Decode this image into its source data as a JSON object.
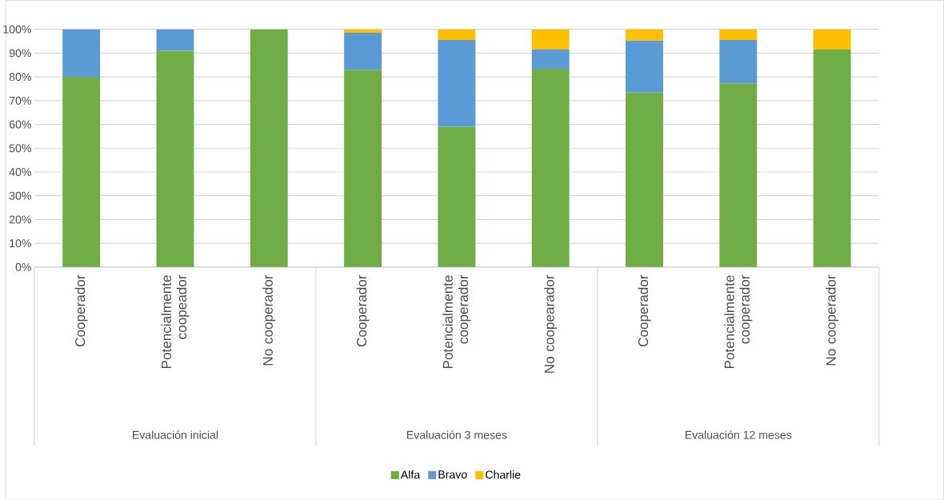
{
  "chart_data": {
    "type": "bar",
    "stacked": true,
    "categories": [
      "Cooperador",
      "Potencialmente coopeador",
      "No cooperador",
      "Cooperador",
      "Potencialmente cooperador",
      "No coopearador",
      "Cooperador",
      "Potencialmente cooperador",
      "No cooperador"
    ],
    "series": [
      {
        "name": "Alfa",
        "color": "#70ad47",
        "values": [
          80,
          91,
          100,
          83,
          59,
          83.4,
          73.4,
          77.3,
          91.6
        ]
      },
      {
        "name": "Bravo",
        "color": "#5b9bd5",
        "values": [
          20,
          9,
          null,
          15.5,
          36.5,
          8.2,
          21.9,
          18.2,
          null
        ]
      },
      {
        "name": "Charlie",
        "color": "#ffc000",
        "values": [
          null,
          null,
          null,
          1.5,
          4.5,
          8.4,
          4.7,
          4.5,
          8.4
        ]
      }
    ],
    "ylim": [
      0,
      100
    ],
    "yticks": [
      {
        "value": 0,
        "label": "0%"
      },
      {
        "value": 10,
        "label": "10%"
      },
      {
        "value": 20,
        "label": "20%"
      },
      {
        "value": 30,
        "label": "30%"
      },
      {
        "value": 40,
        "label": "40%"
      },
      {
        "value": 50,
        "label": "50%"
      },
      {
        "value": 60,
        "label": "60%"
      },
      {
        "value": 70,
        "label": "70%"
      },
      {
        "value": 80,
        "label": "80%"
      },
      {
        "value": 90,
        "label": "90%"
      },
      {
        "value": 100,
        "label": "100%"
      }
    ],
    "grid": "y",
    "legend": "bottom",
    "annotations": [
      "Evaluación inicial",
      "Evaluación 3 meses",
      "Evaluación 12 meses"
    ]
  }
}
